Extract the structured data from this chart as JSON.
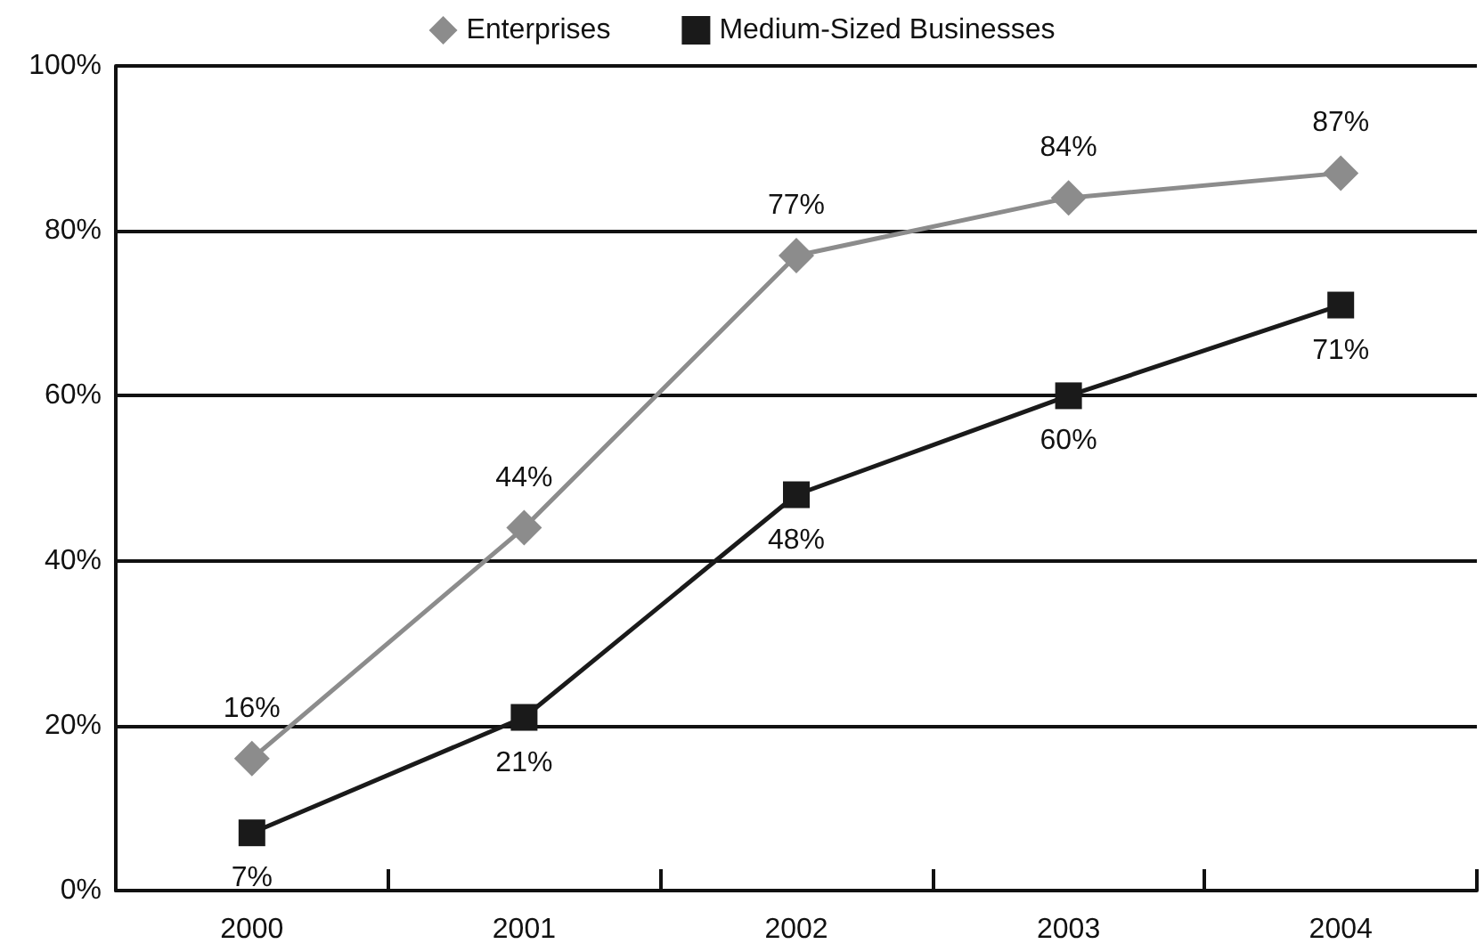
{
  "chart_data": {
    "type": "line",
    "categories": [
      "2000",
      "2001",
      "2002",
      "2003",
      "2004"
    ],
    "series": [
      {
        "name": "Enterprises",
        "color": "#8c8c8c",
        "marker": "diamond",
        "values": [
          16,
          44,
          77,
          84,
          87
        ],
        "value_labels": [
          "16%",
          "44%",
          "77%",
          "84%",
          "87%"
        ]
      },
      {
        "name": "Medium-Sized Businesses",
        "color": "#1a1a1a",
        "marker": "square",
        "values": [
          7,
          21,
          48,
          60,
          71
        ],
        "value_labels": [
          "7%",
          "21%",
          "48%",
          "60%",
          "71%"
        ]
      }
    ],
    "ylim": [
      0,
      100
    ],
    "yticks": [
      {
        "value": 0,
        "label": "0%"
      },
      {
        "value": 20,
        "label": "20%"
      },
      {
        "value": 40,
        "label": "40%"
      },
      {
        "value": 60,
        "label": "60%"
      },
      {
        "value": 80,
        "label": "80%"
      },
      {
        "value": 100,
        "label": "100%"
      }
    ],
    "grid": "y",
    "legend": "top"
  }
}
